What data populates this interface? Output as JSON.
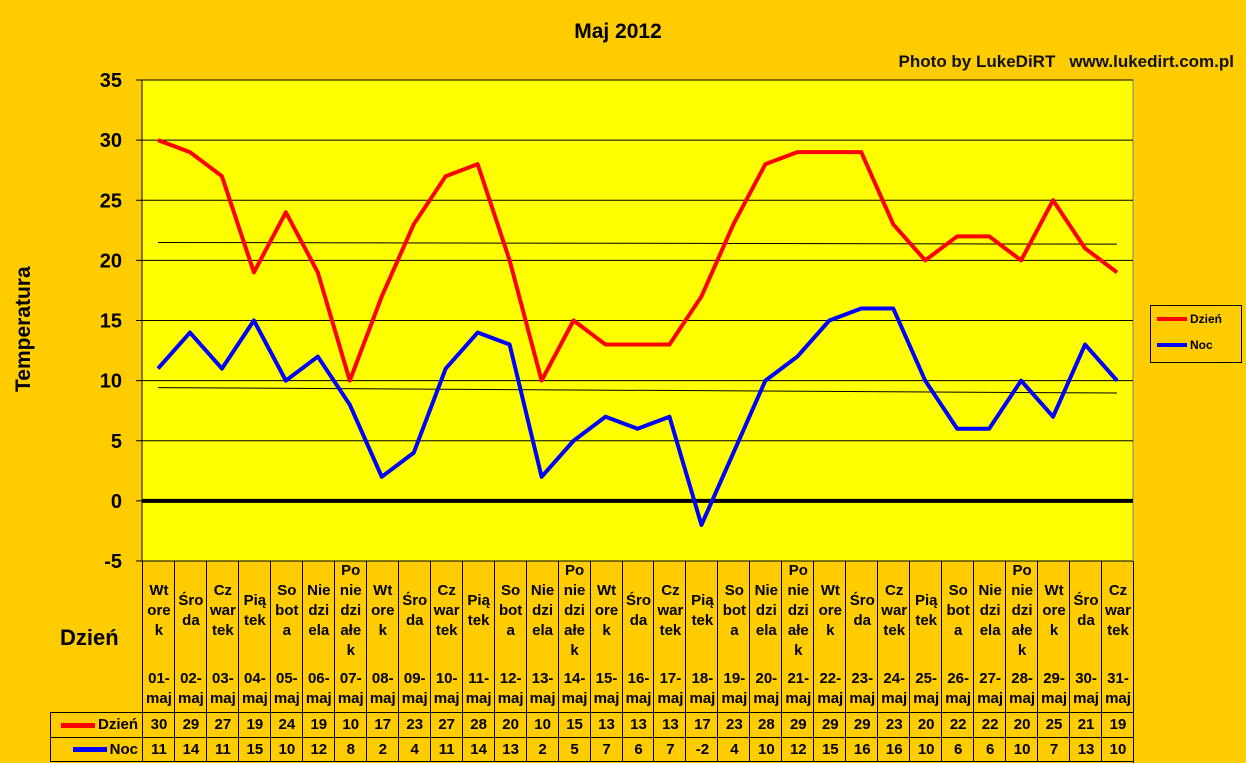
{
  "chart_data": {
    "type": "line",
    "title": "Maj 2012",
    "xlabel": "Dzień",
    "ylabel": "Temperatura",
    "ylim": [
      -5,
      35
    ],
    "yticks": [
      "35",
      "30",
      "25",
      "20",
      "15",
      "10",
      "5",
      "0",
      "-5"
    ],
    "grid": true,
    "legend_position": "right",
    "categories": [
      {
        "weekday": "Wt\nore\nk",
        "date": "01-\nmaj"
      },
      {
        "weekday": "Śro\nda",
        "date": "02-\nmaj"
      },
      {
        "weekday": "Cz\nwar\ntek",
        "date": "03-\nmaj"
      },
      {
        "weekday": "Pią\ntek",
        "date": "04-\nmaj"
      },
      {
        "weekday": "So\nbot\na",
        "date": "05-\nmaj"
      },
      {
        "weekday": "Nie\ndzi\nela",
        "date": "06-\nmaj"
      },
      {
        "weekday": "Po\nnie\ndzi\nałe\nk",
        "date": "07-\nmaj"
      },
      {
        "weekday": "Wt\nore\nk",
        "date": "08-\nmaj"
      },
      {
        "weekday": "Śro\nda",
        "date": "09-\nmaj"
      },
      {
        "weekday": "Cz\nwar\ntek",
        "date": "10-\nmaj"
      },
      {
        "weekday": "Pią\ntek",
        "date": "11-\nmaj"
      },
      {
        "weekday": "So\nbot\na",
        "date": "12-\nmaj"
      },
      {
        "weekday": "Nie\ndzi\nela",
        "date": "13-\nmaj"
      },
      {
        "weekday": "Po\nnie\ndzi\nałe\nk",
        "date": "14-\nmaj"
      },
      {
        "weekday": "Wt\nore\nk",
        "date": "15-\nmaj"
      },
      {
        "weekday": "Śro\nda",
        "date": "16-\nmaj"
      },
      {
        "weekday": "Cz\nwar\ntek",
        "date": "17-\nmaj"
      },
      {
        "weekday": "Pią\ntek",
        "date": "18-\nmaj"
      },
      {
        "weekday": "So\nbot\na",
        "date": "19-\nmaj"
      },
      {
        "weekday": "Nie\ndzi\nela",
        "date": "20-\nmaj"
      },
      {
        "weekday": "Po\nnie\ndzi\nałe\nk",
        "date": "21-\nmaj"
      },
      {
        "weekday": "Wt\nore\nk",
        "date": "22-\nmaj"
      },
      {
        "weekday": "Śro\nda",
        "date": "23-\nmaj"
      },
      {
        "weekday": "Cz\nwar\ntek",
        "date": "24-\nmaj"
      },
      {
        "weekday": "Pią\ntek",
        "date": "25-\nmaj"
      },
      {
        "weekday": "So\nbot\na",
        "date": "26-\nmaj"
      },
      {
        "weekday": "Nie\ndzi\nela",
        "date": "27-\nmaj"
      },
      {
        "weekday": "Po\nnie\ndzi\nałe\nk",
        "date": "28-\nmaj"
      },
      {
        "weekday": "Wt\nore\nk",
        "date": "29-\nmaj"
      },
      {
        "weekday": "Śro\nda",
        "date": "30-\nmaj"
      },
      {
        "weekday": "Cz\nwar\ntek",
        "date": "31-\nmaj"
      }
    ],
    "series": [
      {
        "name": "Dzień",
        "color": "#FF0000",
        "trendline": true,
        "values": [
          30,
          29,
          27,
          19,
          24,
          19,
          10,
          17,
          23,
          27,
          28,
          20,
          10,
          15,
          13,
          13,
          13,
          17,
          23,
          28,
          29,
          29,
          29,
          23,
          20,
          22,
          22,
          20,
          25,
          21,
          19
        ]
      },
      {
        "name": "Noc",
        "color": "#0000FF",
        "trendline": true,
        "values": [
          11,
          14,
          11,
          15,
          10,
          12,
          8,
          2,
          4,
          11,
          14,
          13,
          2,
          5,
          7,
          6,
          7,
          -2,
          4,
          10,
          12,
          15,
          16,
          16,
          10,
          6,
          6,
          10,
          7,
          13,
          10
        ]
      }
    ]
  },
  "watermark": {
    "line1": "Photo by LukeDiRT",
    "line2": "www.lukedirt.com.pl"
  }
}
